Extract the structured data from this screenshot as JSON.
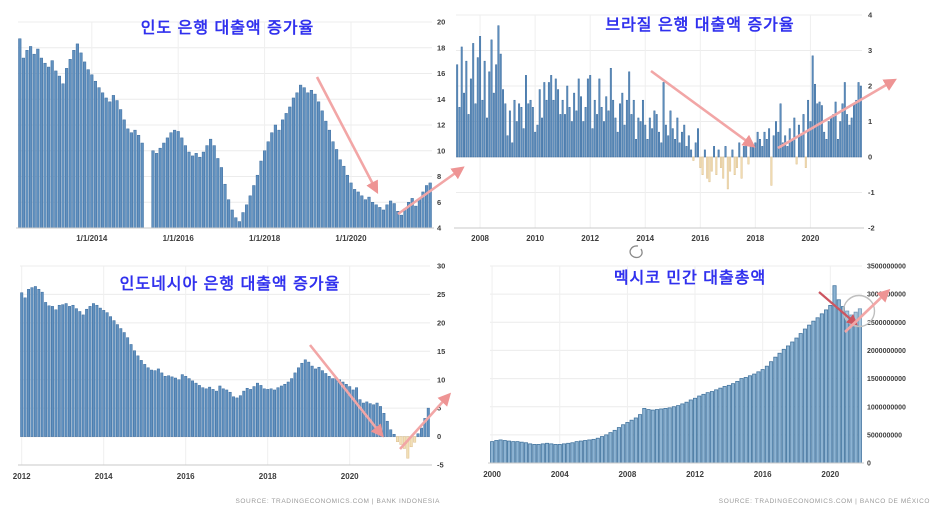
{
  "annotation_style": {
    "arrow_pink": "#f2a6a6",
    "arrow_head_pink": "#ee9494",
    "arrow_red": "#cc5560",
    "circle_gray": "#bfbfbf",
    "scribble_gray": "#8a8a8a"
  },
  "chart_data": [
    {
      "id": "india",
      "type": "bar",
      "title": "인도 은행 대출액 증가율",
      "title_color": "#3030ee",
      "start": "2012-05",
      "frequency": "monthly",
      "ylim": [
        4,
        20
      ],
      "bar_base": 4,
      "ytick_values": [
        20,
        18,
        16,
        14,
        12,
        10,
        8,
        6,
        4
      ],
      "ytick_labels": [
        "20",
        "18",
        "16",
        "14",
        "12",
        "10",
        "8",
        "6",
        "4"
      ],
      "xticks": [
        {
          "index": 20,
          "label": "1/1/2014"
        },
        {
          "index": 44,
          "label": "1/1/2016"
        },
        {
          "index": 68,
          "label": "1/1/2018"
        },
        {
          "index": 92,
          "label": "1/1/2020"
        }
      ],
      "values": [
        18.7,
        17.2,
        17.8,
        18.1,
        17.5,
        17.9,
        17.2,
        16.8,
        16.5,
        17.0,
        16.2,
        15.8,
        15.2,
        16.4,
        17.1,
        17.8,
        18.3,
        17.6,
        16.9,
        16.3,
        15.9,
        15.4,
        14.9,
        14.5,
        14.1,
        13.8,
        14.3,
        13.9,
        13.2,
        12.4,
        11.7,
        11.4,
        11.6,
        11.2,
        10.6,
        null,
        null,
        10.0,
        9.8,
        10.2,
        10.6,
        11.0,
        11.4,
        11.6,
        11.5,
        11.0,
        10.4,
        9.9,
        9.6,
        9.8,
        9.5,
        9.9,
        10.4,
        10.9,
        10.4,
        9.4,
        8.7,
        7.4,
        6.2,
        5.4,
        4.8,
        4.5,
        5.2,
        5.8,
        6.5,
        7.3,
        8.1,
        9.2,
        10.0,
        10.7,
        11.4,
        12.0,
        11.6,
        12.4,
        12.9,
        13.4,
        14.1,
        14.5,
        15.1,
        14.9,
        14.5,
        14.7,
        14.4,
        13.8,
        13.1,
        12.3,
        11.6,
        10.7,
        10.1,
        9.3,
        8.8,
        8.1,
        7.5,
        7.0,
        6.8,
        6.5,
        6.2,
        6.4,
        6.0,
        5.8,
        5.6,
        5.4,
        5.8,
        6.1,
        5.9,
        5.3,
        5.0,
        5.5,
        6.0,
        6.3,
        5.7,
        6.2,
        6.8,
        7.3,
        7.5
      ],
      "colors": {
        "pos_fill": "#6191bf",
        "pos_stroke": "#3a6b9e",
        "neg_fill": "#f2dfb6",
        "neg_stroke": "#ddbf8d"
      },
      "source": null,
      "annotations": [
        "decline-arrow",
        "rebound-arrow"
      ]
    },
    {
      "id": "brazil",
      "type": "bar",
      "title": "브라질 은행 대출액 증가율",
      "title_color": "#3030ee",
      "start": "2007-03",
      "frequency": "monthly",
      "ylim": [
        -2,
        4
      ],
      "bar_base": 0,
      "ytick_values": [
        4,
        3,
        2,
        1,
        0,
        -1,
        -2
      ],
      "ytick_labels": [
        "4",
        "3",
        "2",
        "1",
        "0",
        "-1",
        "-2"
      ],
      "xticks": [
        {
          "index": 10,
          "label": "2008"
        },
        {
          "index": 34,
          "label": "2010"
        },
        {
          "index": 58,
          "label": "2012"
        },
        {
          "index": 82,
          "label": "2014"
        },
        {
          "index": 106,
          "label": "2016"
        },
        {
          "index": 130,
          "label": "2018"
        },
        {
          "index": 154,
          "label": "2020"
        }
      ],
      "values": [
        2.6,
        1.4,
        3.1,
        1.8,
        2.7,
        1.2,
        2.2,
        3.2,
        1.5,
        2.8,
        3.4,
        1.6,
        2.7,
        1.1,
        2.4,
        3.3,
        1.8,
        2.6,
        3.7,
        2.9,
        1.9,
        1.5,
        0.6,
        1.3,
        0.4,
        1.6,
        1.0,
        1.5,
        1.4,
        0.8,
        2.3,
        1.5,
        1.6,
        1.4,
        0.7,
        0.9,
        1.9,
        1.1,
        2.1,
        1.6,
        2.1,
        2.3,
        1.6,
        2.2,
        1.9,
        1.2,
        1.6,
        1.2,
        2.0,
        1.4,
        1.0,
        1.8,
        1.3,
        2.2,
        1.7,
        1.0,
        1.4,
        2.2,
        2.3,
        0.8,
        1.6,
        1.2,
        2.2,
        1.4,
        1.0,
        1.7,
        1.3,
        2.5,
        1.6,
        1.1,
        0.7,
        1.5,
        1.8,
        0.9,
        1.6,
        2.4,
        1.2,
        1.6,
        0.5,
        1.1,
        1.0,
        1.6,
        0.9,
        0.5,
        1.1,
        0.8,
        1.3,
        1.2,
        0.7,
        0.4,
        2.1,
        0.9,
        0.6,
        1.3,
        0.8,
        0.5,
        1.1,
        0.4,
        0.7,
        0.9,
        0.3,
        0.6,
        0.2,
        -0.1,
        0.4,
        0.8,
        -0.3,
        -0.5,
        0.2,
        -0.6,
        -0.7,
        -0.4,
        0.3,
        -0.5,
        0.2,
        -0.3,
        -0.6,
        0.3,
        -0.9,
        -0.4,
        0.2,
        -0.5,
        -0.3,
        0.4,
        -0.6,
        0.3,
        0.5,
        -0.2,
        0.4,
        0.3,
        0.4,
        0.7,
        0.5,
        0.3,
        0.7,
        0.5,
        0.8,
        -0.8,
        0.6,
        1.0,
        0.7,
        1.5,
        0.4,
        0.6,
        0.3,
        0.8,
        0.5,
        1.1,
        -0.2,
        0.9,
        0.6,
        1.2,
        -0.3,
        1.6,
        1.0,
        2.85,
        2.05,
        1.5,
        1.55,
        1.45,
        0.7,
        0.5,
        1.0,
        1.1,
        1.2,
        1.55,
        0.5,
        1.0,
        1.5,
        2.1,
        1.2,
        0.9,
        1.1,
        1.5,
        1.6,
        2.1,
        2.0
      ],
      "colors": {
        "pos_fill": "#6191bf",
        "pos_stroke": "#3a6b9e",
        "neg_fill": "#f2dfb6",
        "neg_stroke": "#ddbf8d"
      },
      "source": null,
      "annotations": [
        "decline-arrow",
        "rebound-arrow"
      ]
    },
    {
      "id": "indonesia",
      "type": "bar",
      "title": "인도네시아 은행 대출액 증가율",
      "title_color": "#3030ee",
      "start": "2012-01",
      "frequency": "monthly",
      "ylim": [
        -5,
        30
      ],
      "bar_base": 0,
      "ytick_values": [
        30,
        25,
        20,
        15,
        10,
        5,
        0,
        -5
      ],
      "ytick_labels": [
        "30",
        "25",
        "20",
        "15",
        "10",
        "5",
        "0",
        "-5"
      ],
      "xticks": [
        {
          "index": 0,
          "label": "2012"
        },
        {
          "index": 24,
          "label": "2014"
        },
        {
          "index": 48,
          "label": "2016"
        },
        {
          "index": 72,
          "label": "2018"
        },
        {
          "index": 96,
          "label": "2020"
        }
      ],
      "values": [
        25.3,
        24.4,
        25.9,
        26.2,
        26.4,
        25.9,
        25.4,
        23.6,
        23.0,
        22.9,
        22.3,
        23.1,
        23.2,
        23.4,
        22.9,
        23.1,
        22.5,
        22.0,
        21.4,
        22.4,
        22.9,
        23.4,
        23.1,
        22.6,
        22.2,
        21.8,
        21.1,
        20.4,
        19.7,
        19.0,
        18.3,
        17.4,
        16.2,
        15.1,
        14.2,
        13.4,
        12.7,
        12.1,
        11.7,
        11.6,
        11.9,
        11.2,
        10.6,
        10.7,
        10.5,
        10.3,
        10.0,
        10.9,
        10.6,
        10.2,
        9.8,
        9.4,
        9.0,
        8.6,
        8.4,
        8.7,
        8.3,
        8.0,
        8.9,
        8.4,
        8.2,
        7.8,
        7.0,
        6.8,
        7.2,
        8.0,
        8.5,
        8.3,
        8.8,
        9.4,
        9.0,
        8.4,
        8.3,
        8.4,
        8.2,
        8.6,
        8.9,
        9.2,
        9.6,
        10.2,
        11.2,
        12.1,
        12.9,
        13.5,
        13.1,
        12.4,
        11.9,
        12.2,
        11.6,
        11.1,
        10.6,
        10.2,
        10.4,
        10.0,
        9.6,
        9.2,
        8.8,
        8.2,
        8.6,
        6.5,
        5.9,
        6.1,
        5.8,
        5.6,
        5.9,
        5.3,
        4.1,
        2.7,
        1.2,
        0.4,
        -0.9,
        -1.4,
        -2.1,
        -3.8,
        -1.8,
        -1.0,
        0.5,
        1.5,
        3.2,
        5.0
      ],
      "colors": {
        "pos_fill": "#6191bf",
        "pos_stroke": "#3a6b9e",
        "neg_fill": "#f2dfb6",
        "neg_stroke": "#ddbf8d"
      },
      "source": "SOURCE: TRADINGECONOMICS.COM | BANK INDONESIA",
      "annotations": [
        "decline-arrow",
        "rebound-arrow"
      ]
    },
    {
      "id": "mexico",
      "type": "bar",
      "title": "멕시코 민간 대출총액",
      "title_color": "#3030ee",
      "start": "2000-Q1",
      "frequency": "quarterly",
      "value_scale": 1000000000,
      "ylim": [
        0,
        3.5
      ],
      "bar_base": 0,
      "ytick_values": [
        3.5,
        3.0,
        2.5,
        2.0,
        1.5,
        1.0,
        0.5,
        0
      ],
      "ytick_labels": [
        "3500000000",
        "3000000000",
        "2500000000",
        "2000000000",
        "1500000000",
        "1000000000",
        "500000000",
        "0"
      ],
      "xticks": [
        {
          "index": 0,
          "label": "2000"
        },
        {
          "index": 16,
          "label": "2004"
        },
        {
          "index": 32,
          "label": "2008"
        },
        {
          "index": 48,
          "label": "2012"
        },
        {
          "index": 64,
          "label": "2016"
        },
        {
          "index": 80,
          "label": "2020"
        }
      ],
      "values": [
        0.38,
        0.4,
        0.41,
        0.4,
        0.39,
        0.38,
        0.38,
        0.37,
        0.36,
        0.34,
        0.33,
        0.33,
        0.34,
        0.35,
        0.34,
        0.33,
        0.33,
        0.34,
        0.35,
        0.36,
        0.38,
        0.39,
        0.4,
        0.41,
        0.42,
        0.44,
        0.47,
        0.5,
        0.54,
        0.58,
        0.63,
        0.68,
        0.72,
        0.76,
        0.8,
        0.86,
        0.97,
        0.95,
        0.94,
        0.95,
        0.96,
        0.97,
        0.98,
        1.0,
        1.02,
        1.05,
        1.08,
        1.12,
        1.15,
        1.19,
        1.22,
        1.25,
        1.27,
        1.3,
        1.33,
        1.36,
        1.38,
        1.41,
        1.45,
        1.5,
        1.52,
        1.55,
        1.58,
        1.62,
        1.66,
        1.72,
        1.8,
        1.88,
        1.95,
        2.02,
        2.08,
        2.15,
        2.22,
        2.3,
        2.38,
        2.45,
        2.52,
        2.58,
        2.65,
        2.72,
        2.8,
        3.15,
        2.9,
        2.78,
        2.7,
        2.63,
        2.68,
        2.74
      ],
      "colors": {
        "pos_fill": "#8db3d2",
        "pos_stroke": "#44759f",
        "neg_fill": "#f2dfb6",
        "neg_stroke": "#ddbf8d"
      },
      "source": "SOURCE: TRADINGECONOMICS.COM | BANCO DE MÉXICO",
      "annotations": [
        "decline-arrow",
        "rebound-arrow",
        "highlight-circle"
      ]
    }
  ]
}
